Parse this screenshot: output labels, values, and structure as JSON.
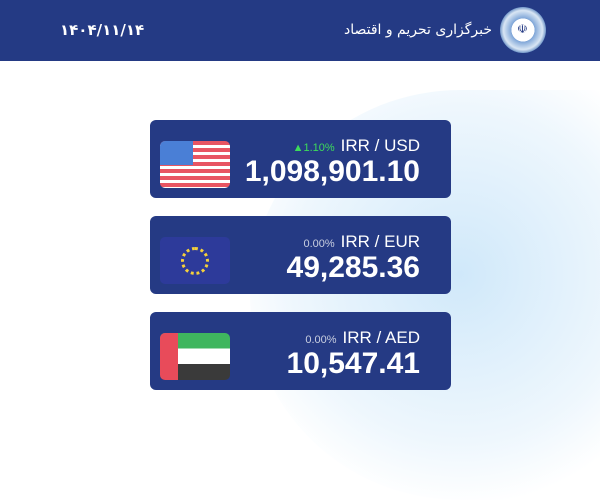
{
  "header": {
    "site_name": "خبرگزاری تحریم و اقتصاد",
    "date": "۱۴۰۴/۱۱/۱۴",
    "logo_text": "الله"
  },
  "rates": [
    {
      "pair": "IRR / USD",
      "change": "▲1.10%",
      "value": "1,098,901.10",
      "flag": "usa"
    },
    {
      "pair": "IRR / EUR",
      "change": "0.00%",
      "value": "49,285.36",
      "flag": "eu"
    },
    {
      "pair": "IRR / AED",
      "change": "0.00%",
      "value": "10,547.41",
      "flag": "uae"
    }
  ],
  "colors": {
    "brand": "#243a84",
    "up": "#3ddc5a"
  }
}
